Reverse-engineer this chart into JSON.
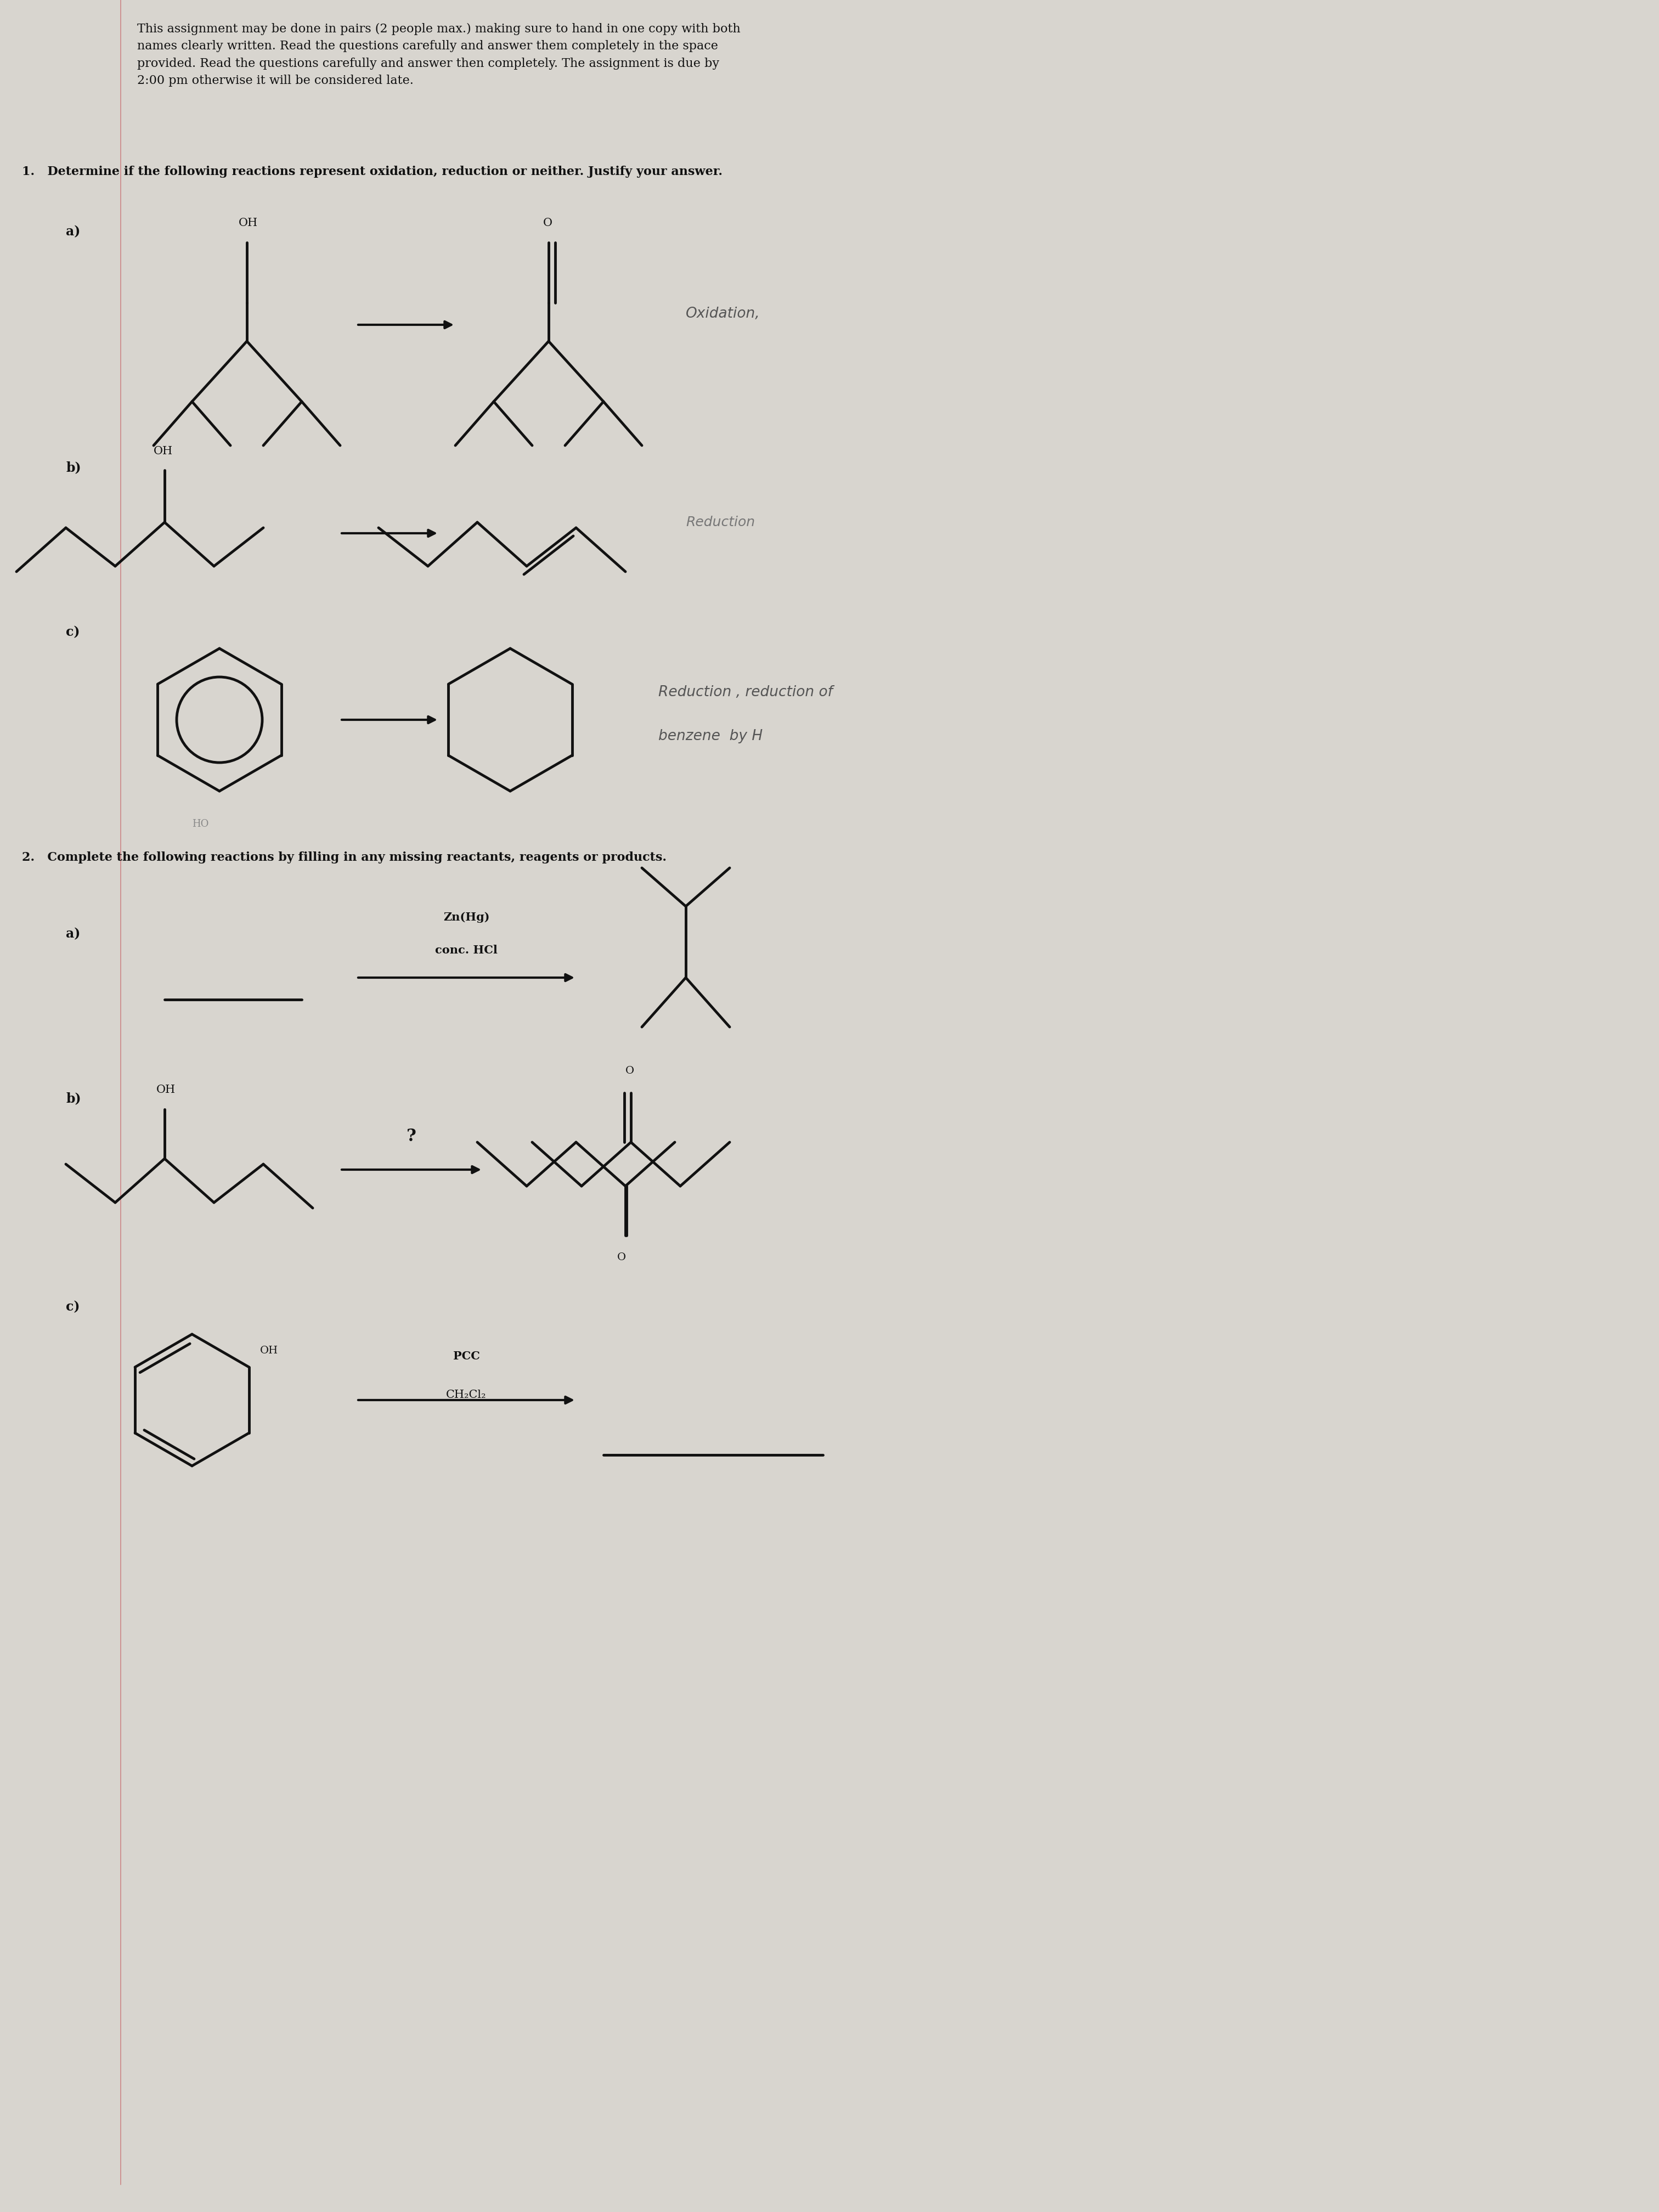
{
  "bg_color": "#d8d5cf",
  "text_color": "#111111",
  "header_text": "This assignment may be done in pairs (2 people max.) making sure to hand in one copy with both\nnames clearly written. Read the questions carefully and answer them completely in the space\nprovided. Read the questions carefully and answer then completely. The assignment is due by\n2:00 pm otherwise it will be considered late.",
  "q1_text": "1.   Determine if the following reactions represent oxidation, reduction or neither. Justify your answer.",
  "q2_text": "2.   Complete the following reactions by filling in any missing reactants, reagents or products.",
  "answer_oxidation": "Oxidation,",
  "answer_reduction_c_line1": "Reduction , reduction of",
  "answer_reduction_c_line2": "benzene  by H",
  "reagent_zn_hg": "Zn(Hg)",
  "reagent_conc_hcl": "conc. HCl",
  "reagent_pcc": "PCC",
  "reagent_ch2cl2": "CH₂Cl₂",
  "label_HO": "HO",
  "label_OH": "OH",
  "label_O": "O",
  "label_o_lower": "O",
  "red_line_color": "#cc8888",
  "struct_lw": 3.5,
  "arrow_lw": 3.0
}
